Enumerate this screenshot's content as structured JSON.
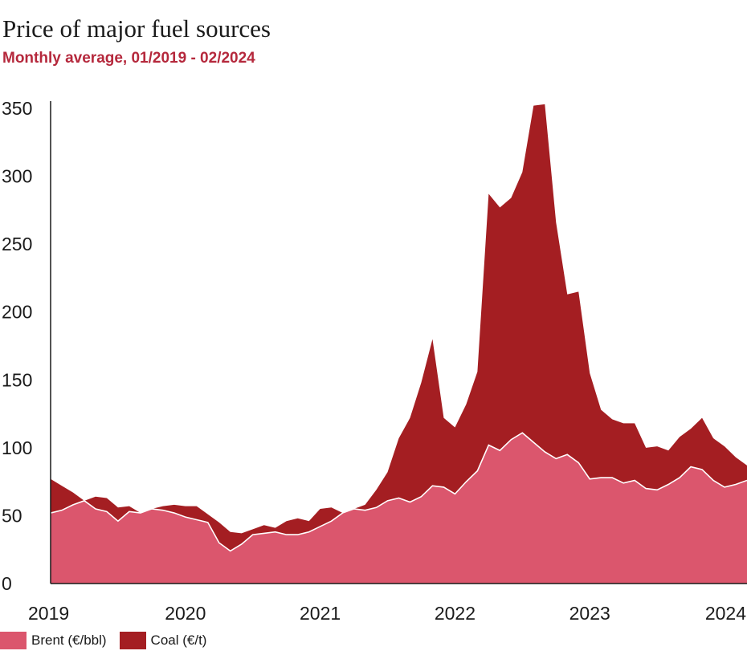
{
  "chart_data": {
    "type": "area",
    "title": "Price of major fuel sources",
    "subtitle": "Monthly average, 01/2019 - 02/2024",
    "stacked": true,
    "ylim": [
      0,
      350
    ],
    "yticks": [
      0,
      50,
      100,
      150,
      200,
      250,
      300,
      350
    ],
    "xticks": [
      "2019",
      "2020",
      "2021",
      "2022",
      "2023",
      "2024"
    ],
    "x_start": "2019-01",
    "x_end": "2024-02",
    "legend_position": "bottom-left",
    "colors": {
      "Brent (€/bbl)": "#db566d",
      "Coal (€/t)": "#a41e22"
    },
    "series": [
      {
        "name": "Brent (€/bbl)",
        "values": [
          52,
          54,
          58,
          61,
          55,
          53,
          46,
          53,
          52,
          55,
          54,
          52,
          49,
          47,
          45,
          30,
          24,
          29,
          36,
          37,
          38,
          36,
          36,
          38,
          42,
          46,
          52,
          55,
          54,
          56,
          61,
          63,
          60,
          64,
          72,
          71,
          66,
          75,
          83,
          102,
          98,
          106,
          111,
          104,
          97,
          92,
          95,
          89,
          77,
          78,
          78,
          74,
          76,
          70,
          69,
          73,
          78,
          86,
          84,
          76,
          71,
          73,
          76
        ]
      },
      {
        "name": "Coal (€/t)",
        "values": [
          25,
          18,
          9,
          0,
          9,
          10,
          10,
          4,
          0,
          0,
          3,
          6,
          8,
          10,
          6,
          15,
          14,
          8,
          4,
          6,
          3,
          10,
          12,
          8,
          13,
          10,
          0,
          0,
          4,
          13,
          21,
          44,
          62,
          84,
          108,
          51,
          49,
          57,
          73,
          185,
          179,
          178,
          192,
          248,
          256,
          174,
          118,
          126,
          78,
          50,
          43,
          44,
          42,
          30,
          32,
          25,
          30,
          28,
          38,
          31,
          30,
          20,
          11
        ]
      }
    ]
  },
  "legend": {
    "items": [
      {
        "label": "Brent (€/bbl)",
        "color": "#db566d"
      },
      {
        "label": "Coal (€/t)",
        "color": "#a41e22"
      }
    ]
  }
}
